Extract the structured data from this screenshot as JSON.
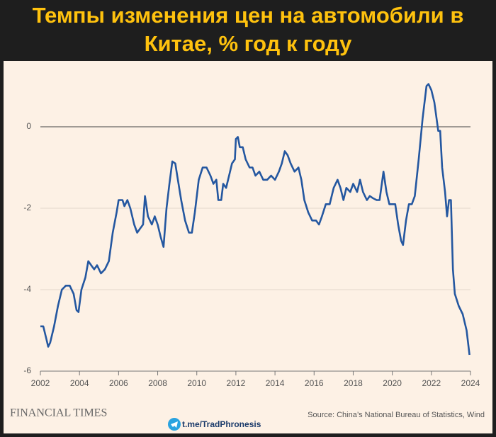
{
  "chart_data": {
    "type": "line",
    "title": "Темпы изменения цен на автомобили в Китае, % год к году",
    "source": "Source: China’s National Bureau of Statistics, Wind",
    "publisher": "FINANCIAL TIMES",
    "channel": "t.me/TradPhronesis",
    "xlim": [
      2002,
      2024
    ],
    "xticks": [
      2002,
      2004,
      2006,
      2008,
      2010,
      2012,
      2014,
      2016,
      2018,
      2020,
      2022,
      2024
    ],
    "ylim": [
      -6,
      1.2
    ],
    "yticks": [
      -6,
      -4,
      -2,
      0
    ],
    "grid": true,
    "x": [
      2002.0,
      2002.15,
      2002.3,
      2002.4,
      2002.5,
      2002.7,
      2002.9,
      2003.1,
      2003.3,
      2003.5,
      2003.7,
      2003.85,
      2003.95,
      2004.1,
      2004.3,
      2004.45,
      2004.6,
      2004.75,
      2004.9,
      2005.1,
      2005.3,
      2005.5,
      2005.7,
      2005.9,
      2006.0,
      2006.2,
      2006.3,
      2006.45,
      2006.6,
      2006.8,
      2006.95,
      2007.1,
      2007.25,
      2007.35,
      2007.5,
      2007.7,
      2007.85,
      2008.0,
      2008.15,
      2008.3,
      2008.45,
      2008.6,
      2008.75,
      2008.9,
      2009.0,
      2009.2,
      2009.4,
      2009.6,
      2009.75,
      2009.9,
      2010.1,
      2010.3,
      2010.5,
      2010.7,
      2010.85,
      2011.0,
      2011.1,
      2011.25,
      2011.35,
      2011.5,
      2011.65,
      2011.8,
      2011.95,
      2012.0,
      2012.1,
      2012.2,
      2012.35,
      2012.5,
      2012.7,
      2012.85,
      2013.0,
      2013.2,
      2013.4,
      2013.6,
      2013.8,
      2014.0,
      2014.2,
      2014.35,
      2014.5,
      2014.65,
      2014.8,
      2015.0,
      2015.2,
      2015.35,
      2015.5,
      2015.7,
      2015.9,
      2016.1,
      2016.25,
      2016.4,
      2016.6,
      2016.8,
      2017.0,
      2017.2,
      2017.35,
      2017.5,
      2017.65,
      2017.85,
      2018.0,
      2018.2,
      2018.35,
      2018.5,
      2018.7,
      2018.85,
      2019.0,
      2019.2,
      2019.35,
      2019.55,
      2019.7,
      2019.85,
      2020.0,
      2020.15,
      2020.3,
      2020.45,
      2020.55,
      2020.7,
      2020.85,
      2021.0,
      2021.15,
      2021.35,
      2021.55,
      2021.75,
      2021.85,
      2022.0,
      2022.15,
      2022.35,
      2022.45,
      2022.55,
      2022.7,
      2022.8,
      2022.9,
      2023.0,
      2023.1,
      2023.2,
      2023.4,
      2023.6,
      2023.8,
      2023.95
    ],
    "series": [
      {
        "color": "#2457a0",
        "values": [
          -4.9,
          -4.9,
          -5.2,
          -5.4,
          -5.3,
          -4.9,
          -4.4,
          -4.0,
          -3.9,
          -3.9,
          -4.1,
          -4.5,
          -4.55,
          -4.0,
          -3.7,
          -3.3,
          -3.4,
          -3.5,
          -3.4,
          -3.6,
          -3.5,
          -3.3,
          -2.6,
          -2.1,
          -1.8,
          -1.8,
          -1.95,
          -1.8,
          -2.0,
          -2.4,
          -2.6,
          -2.5,
          -2.4,
          -1.7,
          -2.2,
          -2.4,
          -2.2,
          -2.4,
          -2.7,
          -2.95,
          -2.0,
          -1.4,
          -0.85,
          -0.9,
          -1.2,
          -1.8,
          -2.3,
          -2.6,
          -2.6,
          -2.1,
          -1.3,
          -1.0,
          -1.0,
          -1.2,
          -1.4,
          -1.3,
          -1.8,
          -1.8,
          -1.4,
          -1.5,
          -1.2,
          -0.9,
          -0.8,
          -0.3,
          -0.25,
          -0.5,
          -0.5,
          -0.8,
          -1.0,
          -1.0,
          -1.2,
          -1.1,
          -1.3,
          -1.3,
          -1.2,
          -1.3,
          -1.1,
          -0.9,
          -0.6,
          -0.7,
          -0.9,
          -1.1,
          -1.0,
          -1.3,
          -1.8,
          -2.1,
          -2.3,
          -2.3,
          -2.4,
          -2.2,
          -1.9,
          -1.9,
          -1.5,
          -1.3,
          -1.5,
          -1.8,
          -1.5,
          -1.6,
          -1.4,
          -1.6,
          -1.3,
          -1.6,
          -1.8,
          -1.7,
          -1.75,
          -1.8,
          -1.8,
          -1.1,
          -1.6,
          -1.9,
          -1.9,
          -1.9,
          -2.4,
          -2.8,
          -2.9,
          -2.3,
          -1.9,
          -1.9,
          -1.7,
          -0.8,
          0.2,
          1.0,
          1.05,
          0.9,
          0.6,
          -0.1,
          -0.1,
          -1.0,
          -1.6,
          -2.2,
          -1.8,
          -1.8,
          -3.5,
          -4.1,
          -4.4,
          -4.6,
          -5.0,
          -5.6
        ]
      }
    ]
  }
}
